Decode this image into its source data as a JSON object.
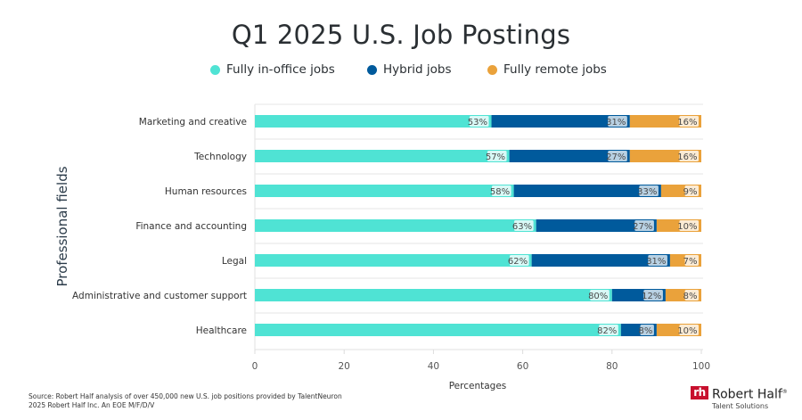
{
  "chart_data": {
    "type": "bar",
    "orientation": "horizontal",
    "stacked": true,
    "title": "Q1 2025 U.S. Job Postings",
    "xlabel": "Percentages",
    "ylabel": "Professional fields",
    "xlim": [
      0,
      100
    ],
    "xticks": [
      0,
      20,
      40,
      60,
      80,
      100
    ],
    "grid": "horizontal separators",
    "legend_position": "top",
    "categories": [
      "Marketing and creative",
      "Technology",
      "Human resources",
      "Finance and accounting",
      "Legal",
      "Administrative and customer support",
      "Healthcare"
    ],
    "series": [
      {
        "name": "Fully in-office jobs",
        "color": "#4fe3d4",
        "values": [
          53,
          57,
          58,
          63,
          62,
          80,
          82
        ]
      },
      {
        "name": "Hybrid jobs",
        "color": "#005a9c",
        "values": [
          31,
          27,
          33,
          27,
          31,
          12,
          8
        ]
      },
      {
        "name": "Fully remote jobs",
        "color": "#eaa23b",
        "values": [
          16,
          16,
          9,
          10,
          7,
          8,
          10
        ]
      }
    ],
    "value_suffix": "%"
  },
  "footer": {
    "source": "Source: Robert Half analysis of over 450,000 new U.S. job positions provided by TalentNeuron",
    "copyright": "2025 Robert Half Inc. An EOE M/F/D/V"
  },
  "logo": {
    "mark": "rh",
    "name": "Robert Half",
    "trademark": "®",
    "subtitle": "Talent Solutions",
    "brand_color": "#c8102e"
  }
}
